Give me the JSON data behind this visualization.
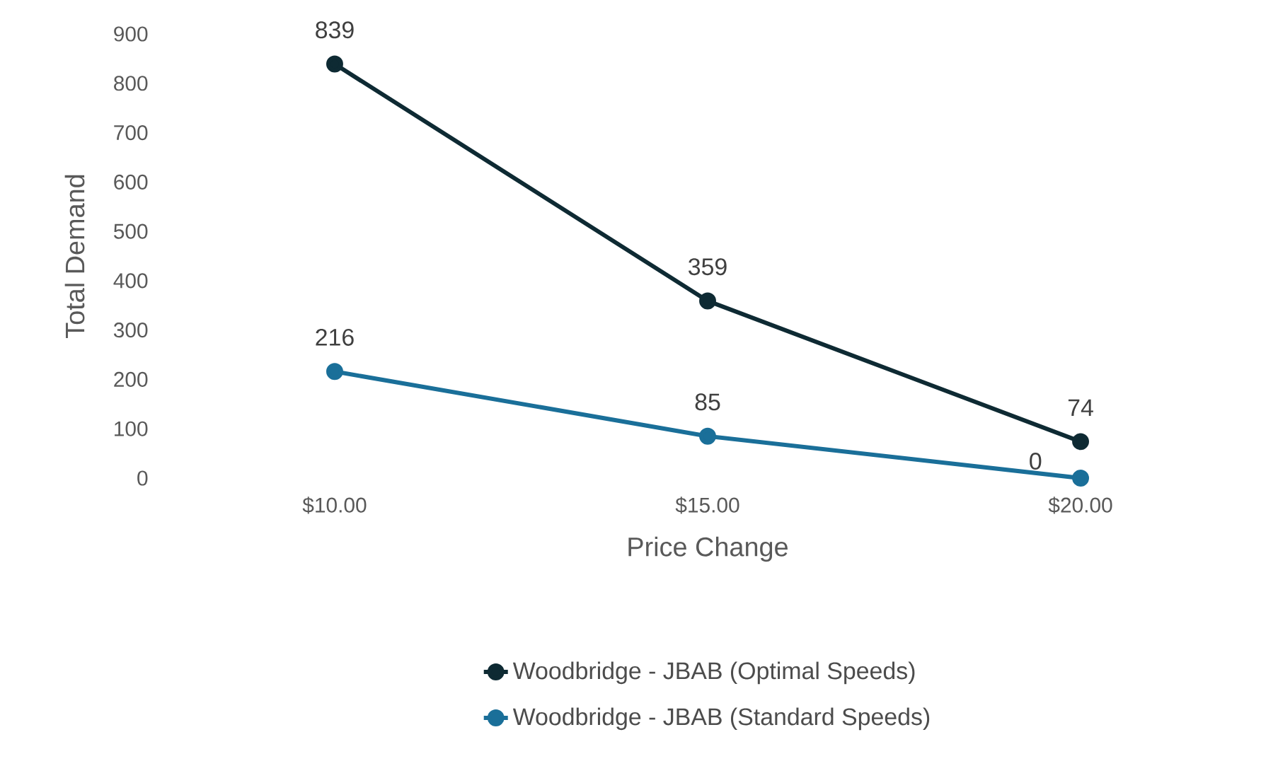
{
  "chart_data": {
    "type": "line",
    "xlabel": "Price Change",
    "ylabel": "Total Demand",
    "categories": [
      "$10.00",
      "$15.00",
      "$20.00"
    ],
    "series": [
      {
        "name": "Woodbridge - JBAB (Optimal Speeds)",
        "color": "#0e2a33",
        "values": [
          839,
          359,
          74
        ]
      },
      {
        "name": "Woodbridge - JBAB (Standard Speeds)",
        "color": "#1a6f99",
        "values": [
          216,
          85,
          0
        ]
      }
    ],
    "ylim": [
      0,
      900
    ],
    "yticks": [
      0,
      100,
      200,
      300,
      400,
      500,
      600,
      700,
      800,
      900
    ],
    "data_labels": true,
    "legend": "bottom",
    "marker": "circle",
    "line_style": "solid",
    "grid": false
  }
}
